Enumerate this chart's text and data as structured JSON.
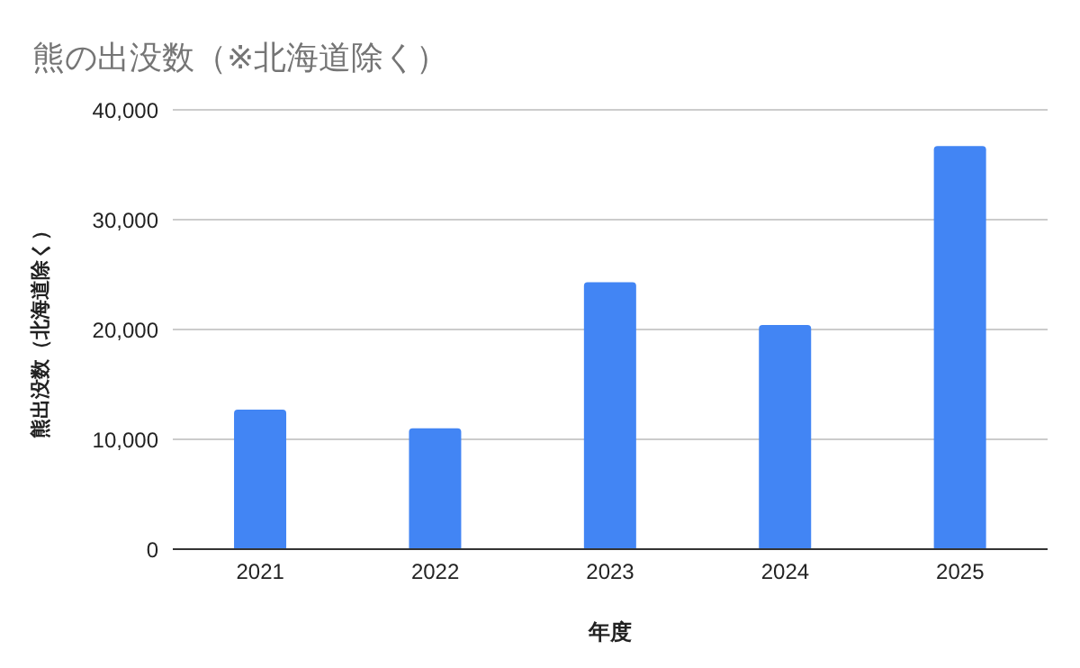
{
  "chart_data": {
    "type": "bar",
    "title": "熊の出没数（※北海道除く）",
    "xlabel": "年度",
    "ylabel": "熊出没数（北海道除く）",
    "categories": [
      "2021",
      "2022",
      "2023",
      "2024",
      "2025"
    ],
    "values": [
      12700,
      11000,
      24300,
      20400,
      36700
    ],
    "color": "#4285f4",
    "ylim": [
      0,
      40000
    ],
    "yticks": [
      {
        "value": 0,
        "label": "0"
      },
      {
        "value": 10000,
        "label": "10,000"
      },
      {
        "value": 20000,
        "label": "20,000"
      },
      {
        "value": 30000,
        "label": "30,000"
      },
      {
        "value": 40000,
        "label": "40,000"
      }
    ],
    "grid": "y"
  }
}
